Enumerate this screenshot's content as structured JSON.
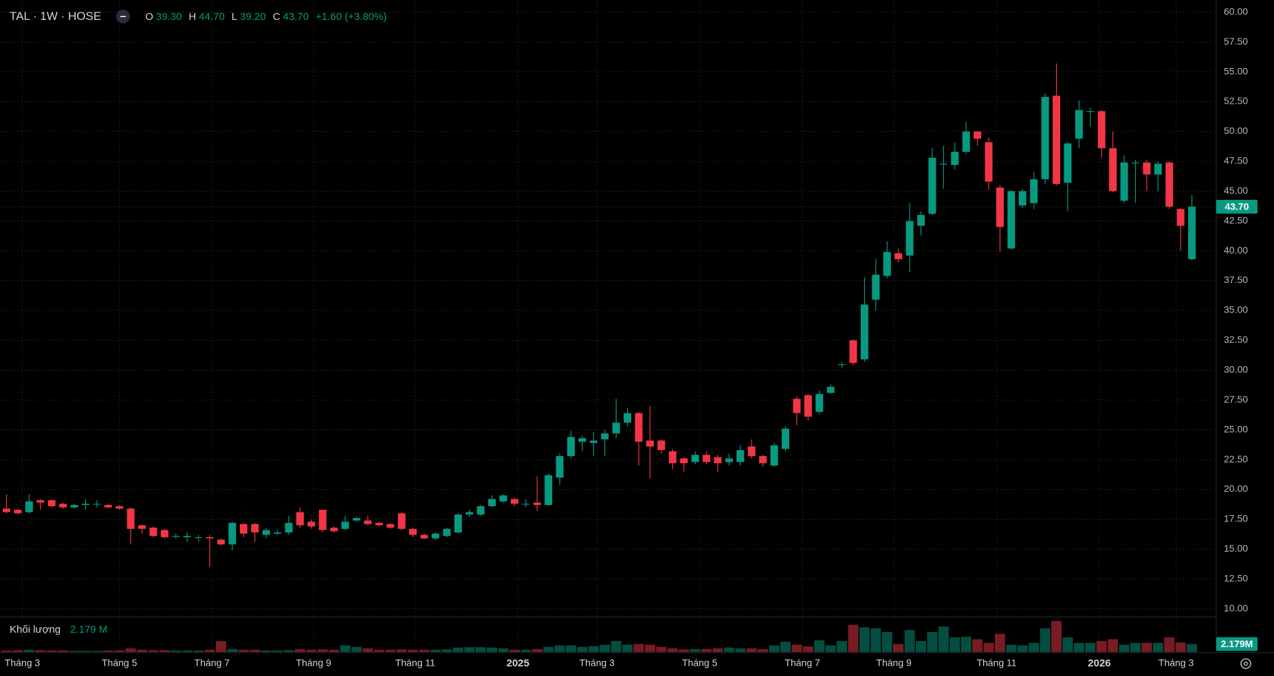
{
  "header": {
    "symbol": "TAL · 1W · HOSE",
    "o_key": "O",
    "open": "39.30",
    "h_key": "H",
    "high": "44.70",
    "l_key": "L",
    "low": "39.20",
    "c_key": "C",
    "close": "43.70",
    "change": "+1.60 (+3.80%)"
  },
  "volume_legend": {
    "title": "Khối lượng",
    "value": "2.179 M"
  },
  "chart_data": {
    "type": "candlestick",
    "up_color": "#089981",
    "down_color": "#f23645",
    "grid": true,
    "ylim": [
      9.32,
      61.02
    ],
    "yticks": [
      {
        "value": 10,
        "label": "10.00"
      },
      {
        "value": 12.5,
        "label": "12.50"
      },
      {
        "value": 15,
        "label": "15.00"
      },
      {
        "value": 17.5,
        "label": "17.50"
      },
      {
        "value": 20,
        "label": "20.00"
      },
      {
        "value": 22.5,
        "label": "22.50"
      },
      {
        "value": 25,
        "label": "25.00"
      },
      {
        "value": 27.5,
        "label": "27.50"
      },
      {
        "value": 30,
        "label": "30.00"
      },
      {
        "value": 32.5,
        "label": "32.50"
      },
      {
        "value": 35,
        "label": "35.00"
      },
      {
        "value": 37.5,
        "label": "37.50"
      },
      {
        "value": 40,
        "label": "40.00"
      },
      {
        "value": 42.5,
        "label": "42.50"
      },
      {
        "value": 45,
        "label": "45.00"
      },
      {
        "value": 47.5,
        "label": "47.50"
      },
      {
        "value": 50,
        "label": "50.00"
      },
      {
        "value": 52.5,
        "label": "52.50"
      },
      {
        "value": 55,
        "label": "55.00"
      },
      {
        "value": 57.5,
        "label": "57.50"
      },
      {
        "value": 60,
        "label": "60.00"
      }
    ],
    "xticks": [
      {
        "value": 1.4,
        "label": "Tháng 3"
      },
      {
        "value": 10,
        "label": "Tháng 5"
      },
      {
        "value": 18.2,
        "label": "Tháng 7"
      },
      {
        "value": 27.2,
        "label": "Tháng 9"
      },
      {
        "value": 36.2,
        "label": "Tháng 11"
      },
      {
        "value": 45.3,
        "label": "2025"
      },
      {
        "value": 52.3,
        "label": "Tháng 3"
      },
      {
        "value": 61.4,
        "label": "Tháng 5"
      },
      {
        "value": 70.5,
        "label": "Tháng 7"
      },
      {
        "value": 78.6,
        "label": "Tháng 9"
      },
      {
        "value": 87.7,
        "label": "Tháng 11"
      },
      {
        "value": 96.8,
        "label": "2026"
      },
      {
        "value": 103.6,
        "label": "Tháng 3"
      }
    ],
    "last_price_label": "43.70",
    "last_volume_label": "2.179M",
    "open": [
      18.4,
      18.3,
      18.1,
      19.1,
      19.1,
      18.8,
      18.5,
      18.7,
      18.8,
      18.7,
      18.6,
      18.4,
      17.0,
      16.8,
      16.6,
      16.1,
      16.0,
      16.0,
      16.0,
      15.8,
      15.4,
      17.1,
      17.1,
      16.2,
      16.3,
      16.4,
      18.1,
      17.3,
      18.3,
      16.8,
      16.7,
      17.4,
      17.4,
      17.2,
      17.1,
      18.0,
      16.7,
      16.2,
      15.9,
      16.1,
      16.4,
      17.9,
      17.9,
      18.6,
      19.0,
      19.2,
      18.8,
      18.9,
      18.7,
      21.0,
      22.8,
      24.0,
      23.9,
      24.2,
      24.7,
      25.6,
      26.4,
      24.1,
      24.1,
      23.2,
      22.6,
      22.3,
      22.9,
      22.7,
      22.3,
      22.3,
      23.6,
      22.8,
      22.0,
      23.4,
      27.6,
      27.9,
      26.5,
      28.1,
      30.5,
      32.5,
      30.9,
      35.9,
      37.9,
      39.8,
      39.6,
      42.1,
      43.1,
      47.3,
      47.2,
      48.3,
      50.0,
      49.1,
      45.3,
      40.2,
      43.8,
      44.0,
      46.0,
      53.0,
      45.7,
      49.4,
      51.7,
      51.7,
      48.6,
      44.2,
      47.4,
      47.4,
      46.4,
      47.4,
      43.5,
      39.3
    ],
    "high": [
      19.6,
      18.4,
      19.6,
      19.2,
      19.2,
      18.9,
      18.8,
      19.2,
      19.1,
      18.8,
      18.7,
      18.5,
      17.1,
      16.9,
      16.7,
      16.3,
      16.4,
      16.2,
      16.2,
      15.9,
      17.3,
      17.2,
      17.2,
      16.8,
      16.6,
      17.8,
      18.5,
      17.5,
      18.3,
      16.9,
      17.8,
      17.7,
      17.8,
      17.3,
      17.2,
      18.1,
      16.8,
      16.3,
      16.4,
      16.8,
      18.0,
      18.3,
      18.7,
      19.5,
      19.6,
      19.3,
      19.2,
      21.1,
      21.3,
      23.0,
      24.9,
      24.5,
      24.8,
      25.0,
      27.6,
      26.8,
      26.5,
      27.0,
      24.2,
      23.4,
      22.7,
      23.2,
      23.2,
      22.9,
      23.0,
      23.7,
      24.2,
      22.9,
      23.9,
      25.3,
      27.8,
      28.0,
      28.3,
      28.8,
      30.7,
      32.6,
      37.8,
      39.3,
      40.8,
      40.2,
      44.0,
      43.3,
      48.6,
      48.8,
      49.1,
      50.8,
      50.0,
      49.5,
      45.5,
      45.1,
      45.2,
      46.6,
      53.2,
      55.7,
      49.1,
      52.6,
      52.0,
      51.8,
      50.0,
      48.0,
      47.6,
      47.6,
      47.5,
      47.5,
      43.6,
      44.7
    ],
    "low": [
      18.0,
      17.9,
      18.0,
      18.3,
      18.5,
      18.4,
      18.4,
      18.3,
      18.5,
      18.4,
      18.3,
      15.4,
      16.3,
      16.0,
      15.9,
      15.9,
      15.6,
      15.6,
      13.5,
      15.3,
      14.9,
      16.0,
      15.6,
      15.9,
      16.2,
      16.2,
      16.8,
      16.7,
      16.4,
      16.4,
      16.6,
      17.3,
      17.0,
      16.9,
      16.7,
      16.6,
      16.0,
      15.8,
      15.8,
      16.0,
      16.3,
      17.7,
      17.8,
      18.5,
      18.9,
      18.6,
      18.5,
      18.2,
      18.6,
      20.4,
      22.6,
      23.2,
      22.8,
      22.8,
      24.3,
      25.3,
      22.0,
      20.9,
      23.0,
      21.7,
      21.5,
      22.1,
      22.1,
      21.5,
      22.0,
      22.0,
      22.6,
      21.9,
      21.9,
      23.2,
      25.4,
      25.8,
      26.3,
      28.0,
      30.2,
      30.4,
      30.7,
      35.0,
      37.7,
      39.0,
      38.2,
      41.3,
      43.0,
      45.2,
      46.8,
      48.1,
      48.8,
      45.1,
      39.9,
      40.1,
      43.6,
      43.5,
      45.6,
      45.5,
      43.3,
      48.6,
      50.4,
      47.8,
      44.9,
      44.0,
      44.0,
      45.0,
      45.0,
      43.5,
      40.0,
      39.2
    ],
    "close": [
      18.1,
      18.0,
      19.0,
      18.9,
      18.6,
      18.5,
      18.7,
      18.8,
      18.8,
      18.5,
      18.4,
      16.7,
      16.7,
      16.1,
      16.0,
      16.1,
      16.1,
      16.0,
      15.9,
      15.4,
      17.2,
      16.3,
      16.4,
      16.6,
      16.4,
      17.2,
      17.0,
      16.9,
      16.6,
      16.5,
      17.3,
      17.6,
      17.1,
      17.0,
      16.8,
      16.7,
      16.2,
      15.9,
      16.3,
      16.7,
      17.9,
      18.1,
      18.6,
      19.2,
      19.5,
      18.8,
      18.8,
      18.7,
      21.2,
      22.8,
      24.4,
      24.3,
      24.1,
      24.7,
      25.6,
      26.4,
      24.0,
      23.6,
      23.3,
      22.2,
      22.2,
      22.9,
      22.3,
      22.2,
      22.6,
      23.3,
      22.8,
      22.2,
      23.7,
      25.1,
      26.4,
      26.1,
      28.0,
      28.6,
      30.5,
      30.6,
      35.5,
      38.0,
      39.9,
      39.3,
      42.5,
      43.0,
      47.8,
      47.3,
      48.3,
      50.0,
      49.4,
      45.8,
      42.0,
      45.0,
      45.0,
      46.0,
      52.9,
      45.6,
      49.0,
      51.8,
      51.7,
      48.6,
      45.0,
      47.4,
      47.4,
      46.4,
      47.3,
      43.7,
      42.1,
      43.7
    ],
    "volume": [
      0.4,
      0.5,
      0.6,
      0.5,
      0.4,
      0.4,
      0.3,
      0.3,
      0.3,
      0.4,
      0.4,
      1.0,
      0.6,
      0.5,
      0.5,
      0.4,
      0.4,
      0.4,
      0.6,
      3.0,
      0.8,
      0.6,
      0.6,
      0.4,
      0.4,
      0.5,
      0.8,
      0.6,
      0.7,
      0.6,
      1.8,
      1.4,
      1.0,
      0.6,
      0.6,
      0.7,
      0.6,
      0.6,
      0.6,
      0.7,
      1.2,
      1.3,
      1.3,
      1.2,
      1.0,
      0.6,
      0.6,
      0.8,
      1.4,
      1.8,
      1.8,
      1.4,
      1.6,
      2.0,
      3.0,
      2.0,
      2.2,
      2.0,
      1.4,
      1.0,
      0.7,
      0.8,
      0.8,
      1.0,
      1.2,
      1.0,
      1.0,
      0.8,
      1.8,
      2.8,
      2.0,
      1.5,
      3.2,
      1.8,
      3.0,
      7.5,
      6.8,
      6.5,
      5.5,
      2.2,
      6.0,
      3.0,
      5.5,
      7.0,
      4.0,
      4.2,
      3.5,
      2.5,
      5.0,
      2.0,
      1.8,
      2.5,
      6.5,
      8.5,
      4.0,
      2.5,
      2.5,
      3.0,
      3.5,
      2.0,
      2.5,
      2.5,
      2.5,
      4.0,
      2.6,
      2.179
    ]
  }
}
